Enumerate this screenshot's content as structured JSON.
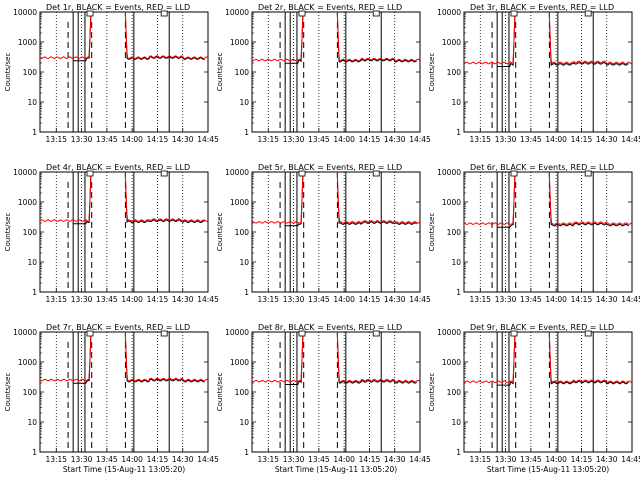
{
  "figure": {
    "background": "#ffffff",
    "events_color": "#000000",
    "lld_color": "#ff0000"
  },
  "chart_data": [
    {
      "type": "line",
      "title": "Det 1r, BLACK = Events, RED = LLD",
      "ylabel": "Counts/sec",
      "xlabel": "",
      "x_ticks": [
        "13:15",
        "13:30",
        "13:45",
        "14:00",
        "14:15",
        "14:30",
        "14:45"
      ],
      "y_ticks": [
        "1",
        "10",
        "100",
        "1000",
        "10000"
      ],
      "yscale": "log",
      "ylim": [
        1,
        10000
      ],
      "xlim": [
        "13:05:20",
        "14:45:00"
      ],
      "series": [
        {
          "name": "Events",
          "color": "#000000",
          "baseline_counts_per_sec": 280
        },
        {
          "name": "LLD",
          "color": "#ff0000",
          "baseline_counts_per_sec": 300
        }
      ],
      "peak_interval": [
        "13:36",
        "13:56"
      ]
    },
    {
      "type": "line",
      "title": "Det 2r, BLACK = Events, RED = LLD",
      "ylabel": "Counts/sec",
      "xlabel": "",
      "x_ticks": [
        "13:15",
        "13:30",
        "13:45",
        "14:00",
        "14:15",
        "14:30",
        "14:45"
      ],
      "y_ticks": [
        "1",
        "10",
        "100",
        "1000",
        "10000"
      ],
      "yscale": "log",
      "ylim": [
        1,
        10000
      ],
      "xlim": [
        "13:05:20",
        "14:45:00"
      ],
      "series": [
        {
          "name": "Events",
          "color": "#000000",
          "baseline_counts_per_sec": 230
        },
        {
          "name": "LLD",
          "color": "#ff0000",
          "baseline_counts_per_sec": 250
        }
      ],
      "peak_interval": [
        "13:36",
        "13:56"
      ]
    },
    {
      "type": "line",
      "title": "Det 3r, BLACK = Events, RED = LLD",
      "ylabel": "Counts/sec",
      "xlabel": "",
      "x_ticks": [
        "13:15",
        "13:30",
        "13:45",
        "14:00",
        "14:15",
        "14:30",
        "14:45"
      ],
      "y_ticks": [
        "1",
        "10",
        "100",
        "1000",
        "10000"
      ],
      "yscale": "log",
      "ylim": [
        1,
        10000
      ],
      "xlim": [
        "13:05:20",
        "14:45:00"
      ],
      "series": [
        {
          "name": "Events",
          "color": "#000000",
          "baseline_counts_per_sec": 180
        },
        {
          "name": "LLD",
          "color": "#ff0000",
          "baseline_counts_per_sec": 200
        }
      ],
      "peak_interval": [
        "13:36",
        "13:56"
      ]
    },
    {
      "type": "line",
      "title": "Det 4r, BLACK = Events, RED = LLD",
      "ylabel": "Counts/sec",
      "xlabel": "",
      "x_ticks": [
        "13:15",
        "13:30",
        "13:45",
        "14:00",
        "14:15",
        "14:30",
        "14:45"
      ],
      "y_ticks": [
        "1",
        "10",
        "100",
        "1000",
        "10000"
      ],
      "yscale": "log",
      "ylim": [
        1,
        10000
      ],
      "xlim": [
        "13:05:20",
        "14:45:00"
      ],
      "series": [
        {
          "name": "Events",
          "color": "#000000",
          "baseline_counts_per_sec": 220
        },
        {
          "name": "LLD",
          "color": "#ff0000",
          "baseline_counts_per_sec": 240
        }
      ],
      "peak_interval": [
        "13:36",
        "13:56"
      ]
    },
    {
      "type": "line",
      "title": "Det 5r, BLACK = Events, RED = LLD",
      "ylabel": "Counts/sec",
      "xlabel": "",
      "x_ticks": [
        "13:15",
        "13:30",
        "13:45",
        "14:00",
        "14:15",
        "14:30",
        "14:45"
      ],
      "y_ticks": [
        "1",
        "10",
        "100",
        "1000",
        "10000"
      ],
      "yscale": "log",
      "ylim": [
        1,
        10000
      ],
      "xlim": [
        "13:05:20",
        "14:45:00"
      ],
      "series": [
        {
          "name": "Events",
          "color": "#000000",
          "baseline_counts_per_sec": 190
        },
        {
          "name": "LLD",
          "color": "#ff0000",
          "baseline_counts_per_sec": 210
        }
      ],
      "peak_interval": [
        "13:36",
        "13:56"
      ]
    },
    {
      "type": "line",
      "title": "Det 6r, BLACK = Events, RED = LLD",
      "ylabel": "Counts/sec",
      "xlabel": "",
      "x_ticks": [
        "13:15",
        "13:30",
        "13:45",
        "14:00",
        "14:15",
        "14:30",
        "14:45"
      ],
      "y_ticks": [
        "1",
        "10",
        "100",
        "1000",
        "10000"
      ],
      "yscale": "log",
      "ylim": [
        1,
        10000
      ],
      "xlim": [
        "13:05:20",
        "14:45:00"
      ],
      "series": [
        {
          "name": "Events",
          "color": "#000000",
          "baseline_counts_per_sec": 170
        },
        {
          "name": "LLD",
          "color": "#ff0000",
          "baseline_counts_per_sec": 190
        }
      ],
      "peak_interval": [
        "13:36",
        "13:56"
      ]
    },
    {
      "type": "line",
      "title": "Det 7r, BLACK = Events, RED = LLD",
      "ylabel": "Counts/sec",
      "xlabel": "Start Time (15-Aug-11 13:05:20)",
      "x_ticks": [
        "13:15",
        "13:30",
        "13:45",
        "14:00",
        "14:15",
        "14:30",
        "14:45"
      ],
      "y_ticks": [
        "1",
        "10",
        "100",
        "1000",
        "10000"
      ],
      "yscale": "log",
      "ylim": [
        1,
        10000
      ],
      "xlim": [
        "13:05:20",
        "14:45:00"
      ],
      "series": [
        {
          "name": "Events",
          "color": "#000000",
          "baseline_counts_per_sec": 230
        },
        {
          "name": "LLD",
          "color": "#ff0000",
          "baseline_counts_per_sec": 250
        }
      ],
      "peak_interval": [
        "13:36",
        "13:56"
      ]
    },
    {
      "type": "line",
      "title": "Det 8r, BLACK = Events, RED = LLD",
      "ylabel": "Counts/sec",
      "xlabel": "Start Time (15-Aug-11 13:05:20)",
      "x_ticks": [
        "13:15",
        "13:30",
        "13:45",
        "14:00",
        "14:15",
        "14:30",
        "14:45"
      ],
      "y_ticks": [
        "1",
        "10",
        "100",
        "1000",
        "10000"
      ],
      "yscale": "log",
      "ylim": [
        1,
        10000
      ],
      "xlim": [
        "13:05:20",
        "14:45:00"
      ],
      "series": [
        {
          "name": "Events",
          "color": "#000000",
          "baseline_counts_per_sec": 210
        },
        {
          "name": "LLD",
          "color": "#ff0000",
          "baseline_counts_per_sec": 230
        }
      ],
      "peak_interval": [
        "13:36",
        "13:56"
      ]
    },
    {
      "type": "line",
      "title": "Det 9r, BLACK = Events, RED = LLD",
      "ylabel": "Counts/sec",
      "xlabel": "Start Time (15-Aug-11 13:05:20)",
      "x_ticks": [
        "13:15",
        "13:30",
        "13:45",
        "14:00",
        "14:15",
        "14:30",
        "14:45"
      ],
      "y_ticks": [
        "1",
        "10",
        "100",
        "1000",
        "10000"
      ],
      "yscale": "log",
      "ylim": [
        1,
        10000
      ],
      "xlim": [
        "13:05:20",
        "14:45:00"
      ],
      "series": [
        {
          "name": "Events",
          "color": "#000000",
          "baseline_counts_per_sec": 200
        },
        {
          "name": "LLD",
          "color": "#ff0000",
          "baseline_counts_per_sec": 220
        }
      ],
      "peak_interval": [
        "13:36",
        "13:56"
      ]
    }
  ]
}
